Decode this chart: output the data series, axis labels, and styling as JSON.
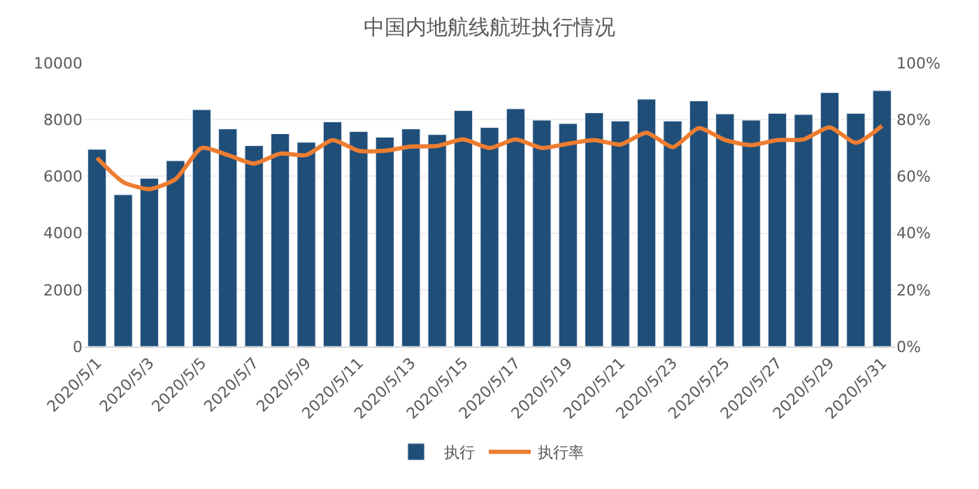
{
  "chart_data": {
    "type": "bar",
    "title": "中国内地航线航班执行情况",
    "categories": [
      "2020/5/1",
      null,
      "2020/5/3",
      null,
      "2020/5/5",
      null,
      "2020/5/7",
      null,
      "2020/5/9",
      null,
      "2020/5/11",
      null,
      "2020/5/13",
      null,
      "2020/5/15",
      null,
      "2020/5/17",
      null,
      "2020/5/19",
      null,
      "2020/5/21",
      null,
      "2020/5/23",
      null,
      "2020/5/25",
      null,
      "2020/5/27",
      null,
      "2020/5/29",
      null,
      "2020/5/31"
    ],
    "series": [
      {
        "name": "执行",
        "color": "#1f4e79",
        "values": [
          6950,
          5350,
          5930,
          6550,
          8350,
          7670,
          7080,
          7500,
          7200,
          7920,
          7580,
          7380,
          7670,
          7470,
          8320,
          7720,
          8380,
          7980,
          7860,
          8240,
          7950,
          8720,
          7950,
          8660,
          8200,
          7980,
          8220,
          8180,
          8950,
          8220,
          9020
        ]
      },
      {
        "name": "执行率",
        "type": "line",
        "axis": "y2",
        "color": "#ed7d31",
        "values": [
          66.5,
          58,
          55.5,
          59,
          70,
          67.5,
          64.5,
          68,
          67.5,
          72.8,
          69,
          69,
          70.5,
          70.7,
          73,
          70,
          73,
          70,
          71.5,
          72.8,
          71.2,
          75.4,
          70.3,
          77,
          72.8,
          71,
          72.8,
          73,
          77.3,
          71.8,
          77.8
        ]
      }
    ],
    "ylim": [
      0,
      10000
    ],
    "yticks": [
      0,
      2000,
      4000,
      6000,
      8000,
      10000
    ],
    "y2lim": [
      0,
      100
    ],
    "y2ticks": [
      {
        "value": 0,
        "label": "0%"
      },
      {
        "value": 20,
        "label": "20%"
      },
      {
        "value": 40,
        "label": "40%"
      },
      {
        "value": 60,
        "label": "60%"
      },
      {
        "value": 80,
        "label": "80%"
      },
      {
        "value": 100,
        "label": "100%"
      }
    ],
    "grid": "y",
    "legend": "bottom",
    "marker": "none"
  }
}
